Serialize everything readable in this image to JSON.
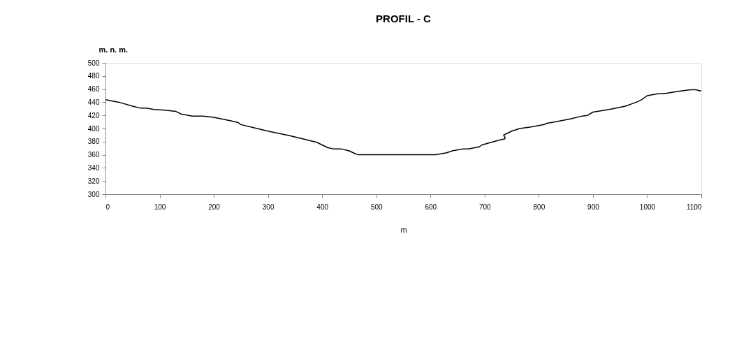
{
  "chart_data": {
    "type": "line",
    "title": "PROFIL - C",
    "xlabel": "m",
    "ylabel": "m. n. m.",
    "series": [
      {
        "color": "#000000",
        "x": [
          0,
          25,
          50,
          65,
          75,
          90,
          110,
          130,
          140,
          160,
          180,
          200,
          230,
          245,
          250,
          280,
          300,
          340,
          360,
          390,
          400,
          410,
          420,
          435,
          450,
          460,
          467,
          610,
          630,
          640,
          660,
          670,
          690,
          695,
          730,
          737,
          738,
          735,
          740,
          750,
          765,
          790,
          810,
          815,
          830,
          860,
          880,
          890,
          900,
          930,
          960,
          980,
          990,
          1000,
          1020,
          1030,
          1060,
          1080,
          1090,
          1100
        ],
        "values": [
          444,
          440,
          434,
          431,
          431,
          429,
          428,
          426,
          422,
          419,
          419,
          417,
          412,
          409,
          406,
          400,
          396,
          389,
          385,
          379,
          375,
          371,
          369,
          369,
          366,
          362,
          360,
          360,
          363,
          366,
          369,
          369,
          372,
          375,
          383,
          384,
          386,
          390,
          392,
          396,
          400,
          403,
          406,
          408,
          410,
          415,
          419,
          420,
          425,
          429,
          434,
          440,
          444,
          450,
          453,
          453,
          457,
          459,
          459,
          457
        ]
      }
    ],
    "xlim": [
      0,
      1100
    ],
    "xticks": [
      0,
      100,
      200,
      300,
      400,
      500,
      600,
      700,
      800,
      900,
      1000,
      1100
    ],
    "ylim": [
      300,
      500
    ],
    "yticks": [
      300,
      320,
      340,
      360,
      380,
      400,
      420,
      440,
      460,
      480,
      500
    ],
    "grid": false,
    "line_style": "solid",
    "marker": "none"
  }
}
